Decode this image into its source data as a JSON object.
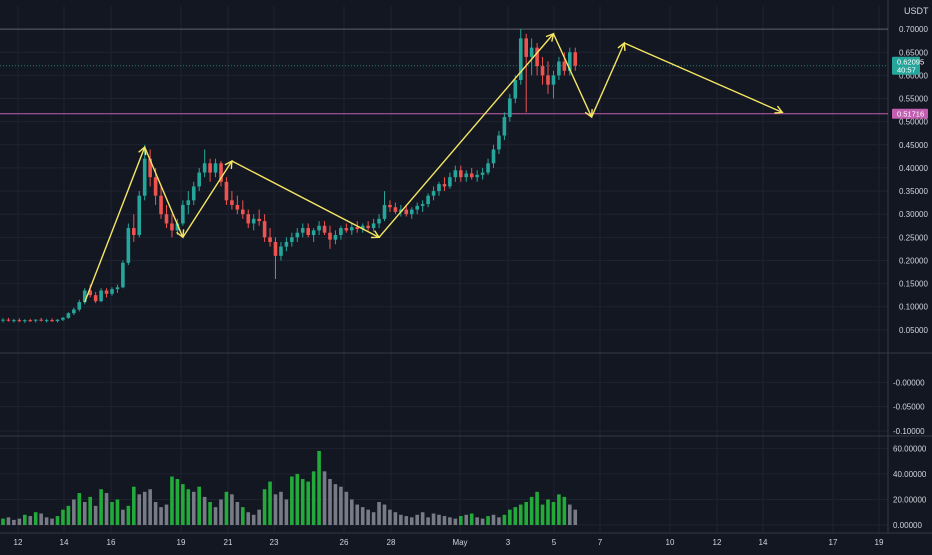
{
  "colors": {
    "background": "#131722",
    "grid": "#1f2330",
    "pane_separator": "#363a45",
    "axis_text": "#d1d4dc",
    "up": "#26a69a",
    "down": "#ef5350",
    "volume_up": "#22ab3a",
    "volume_down": "#787b86",
    "annotation": "#f5e663",
    "support_line": "#c25fb0",
    "resistance_line": "#5d606b",
    "price_badge": "#26a69a",
    "level_badge": "#c25fb0"
  },
  "chart_data": {
    "type": "candlestick",
    "currency_label": "USDT",
    "x_tick_labels": [
      "12",
      "14",
      "16",
      "19",
      "21",
      "23",
      "26",
      "28",
      "May",
      "3",
      "5",
      "7",
      "10",
      "12",
      "14",
      "17",
      "19"
    ],
    "price_axis": {
      "ylim": [
        0.0,
        0.75
      ],
      "ticks": [
        "0.70000",
        "0.65000",
        "0.60000",
        "0.55000",
        "0.50000",
        "0.45000",
        "0.40000",
        "0.35000",
        "0.30000",
        "0.25000",
        "0.20000",
        "0.15000",
        "0.10000",
        "0.05000"
      ]
    },
    "indicator_axis": {
      "ylim": [
        -0.1,
        0.05
      ],
      "ticks": [
        "-0.00000",
        "-0.05000",
        "-0.10000"
      ]
    },
    "volume_axis": {
      "ylim": [
        0,
        65
      ],
      "ticks": [
        "60.00000",
        "40.00000",
        "20.00000",
        "0.00000"
      ]
    },
    "current_price": {
      "value": "0.62095",
      "countdown": "40:57"
    },
    "support_level": {
      "value": "0.51716"
    },
    "resistance_level": 0.7,
    "candles": [
      [
        0.07,
        0.075,
        0.066,
        0.072
      ],
      [
        0.072,
        0.076,
        0.068,
        0.07
      ],
      [
        0.07,
        0.074,
        0.066,
        0.071
      ],
      [
        0.071,
        0.075,
        0.067,
        0.069
      ],
      [
        0.069,
        0.073,
        0.065,
        0.071
      ],
      [
        0.071,
        0.074,
        0.067,
        0.07
      ],
      [
        0.07,
        0.073,
        0.066,
        0.072
      ],
      [
        0.072,
        0.076,
        0.068,
        0.07
      ],
      [
        0.07,
        0.074,
        0.066,
        0.071
      ],
      [
        0.071,
        0.075,
        0.067,
        0.069
      ],
      [
        0.069,
        0.073,
        0.066,
        0.072
      ],
      [
        0.072,
        0.078,
        0.069,
        0.076
      ],
      [
        0.076,
        0.088,
        0.074,
        0.086
      ],
      [
        0.086,
        0.098,
        0.082,
        0.094
      ],
      [
        0.094,
        0.115,
        0.09,
        0.11
      ],
      [
        0.11,
        0.14,
        0.105,
        0.135
      ],
      [
        0.135,
        0.148,
        0.12,
        0.125
      ],
      [
        0.125,
        0.132,
        0.108,
        0.112
      ],
      [
        0.112,
        0.14,
        0.11,
        0.135
      ],
      [
        0.135,
        0.14,
        0.12,
        0.128
      ],
      [
        0.128,
        0.142,
        0.124,
        0.138
      ],
      [
        0.138,
        0.148,
        0.13,
        0.142
      ],
      [
        0.142,
        0.2,
        0.14,
        0.195
      ],
      [
        0.195,
        0.28,
        0.19,
        0.27
      ],
      [
        0.27,
        0.3,
        0.24,
        0.255
      ],
      [
        0.255,
        0.35,
        0.25,
        0.34
      ],
      [
        0.34,
        0.45,
        0.33,
        0.42
      ],
      [
        0.42,
        0.44,
        0.36,
        0.38
      ],
      [
        0.38,
        0.4,
        0.32,
        0.34
      ],
      [
        0.34,
        0.36,
        0.29,
        0.3
      ],
      [
        0.3,
        0.32,
        0.27,
        0.28
      ],
      [
        0.28,
        0.3,
        0.25,
        0.265
      ],
      [
        0.265,
        0.29,
        0.255,
        0.28
      ],
      [
        0.28,
        0.33,
        0.275,
        0.32
      ],
      [
        0.32,
        0.35,
        0.3,
        0.33
      ],
      [
        0.33,
        0.37,
        0.32,
        0.36
      ],
      [
        0.36,
        0.4,
        0.35,
        0.39
      ],
      [
        0.39,
        0.44,
        0.38,
        0.41
      ],
      [
        0.41,
        0.42,
        0.37,
        0.39
      ],
      [
        0.39,
        0.42,
        0.38,
        0.41
      ],
      [
        0.41,
        0.415,
        0.36,
        0.37
      ],
      [
        0.37,
        0.38,
        0.32,
        0.33
      ],
      [
        0.33,
        0.35,
        0.31,
        0.32
      ],
      [
        0.32,
        0.34,
        0.3,
        0.31
      ],
      [
        0.31,
        0.33,
        0.29,
        0.3
      ],
      [
        0.3,
        0.31,
        0.27,
        0.28
      ],
      [
        0.28,
        0.3,
        0.265,
        0.29
      ],
      [
        0.29,
        0.31,
        0.275,
        0.285
      ],
      [
        0.285,
        0.3,
        0.24,
        0.25
      ],
      [
        0.25,
        0.27,
        0.23,
        0.24
      ],
      [
        0.24,
        0.25,
        0.16,
        0.21
      ],
      [
        0.21,
        0.24,
        0.2,
        0.23
      ],
      [
        0.23,
        0.25,
        0.22,
        0.24
      ],
      [
        0.24,
        0.26,
        0.23,
        0.25
      ],
      [
        0.25,
        0.27,
        0.24,
        0.26
      ],
      [
        0.26,
        0.28,
        0.25,
        0.27
      ],
      [
        0.27,
        0.28,
        0.25,
        0.255
      ],
      [
        0.255,
        0.27,
        0.24,
        0.265
      ],
      [
        0.265,
        0.285,
        0.255,
        0.275
      ],
      [
        0.275,
        0.285,
        0.255,
        0.26
      ],
      [
        0.26,
        0.275,
        0.225,
        0.245
      ],
      [
        0.245,
        0.265,
        0.235,
        0.255
      ],
      [
        0.255,
        0.275,
        0.245,
        0.27
      ],
      [
        0.27,
        0.28,
        0.26,
        0.265
      ],
      [
        0.265,
        0.28,
        0.255,
        0.272
      ],
      [
        0.272,
        0.285,
        0.26,
        0.268
      ],
      [
        0.268,
        0.28,
        0.26,
        0.275
      ],
      [
        0.275,
        0.285,
        0.265,
        0.27
      ],
      [
        0.27,
        0.29,
        0.262,
        0.28
      ],
      [
        0.28,
        0.3,
        0.27,
        0.29
      ],
      [
        0.29,
        0.35,
        0.285,
        0.32
      ],
      [
        0.32,
        0.33,
        0.305,
        0.315
      ],
      [
        0.315,
        0.325,
        0.3,
        0.305
      ],
      [
        0.305,
        0.32,
        0.295,
        0.31
      ],
      [
        0.31,
        0.32,
        0.295,
        0.3
      ],
      [
        0.3,
        0.315,
        0.29,
        0.31
      ],
      [
        0.31,
        0.325,
        0.3,
        0.318
      ],
      [
        0.318,
        0.33,
        0.305,
        0.322
      ],
      [
        0.322,
        0.345,
        0.315,
        0.34
      ],
      [
        0.34,
        0.36,
        0.33,
        0.35
      ],
      [
        0.35,
        0.37,
        0.34,
        0.365
      ],
      [
        0.365,
        0.38,
        0.35,
        0.36
      ],
      [
        0.36,
        0.39,
        0.355,
        0.38
      ],
      [
        0.38,
        0.405,
        0.37,
        0.395
      ],
      [
        0.395,
        0.405,
        0.37,
        0.38
      ],
      [
        0.38,
        0.395,
        0.37,
        0.388
      ],
      [
        0.388,
        0.4,
        0.375,
        0.38
      ],
      [
        0.38,
        0.395,
        0.37,
        0.385
      ],
      [
        0.385,
        0.4,
        0.375,
        0.39
      ],
      [
        0.39,
        0.42,
        0.385,
        0.41
      ],
      [
        0.41,
        0.45,
        0.4,
        0.44
      ],
      [
        0.44,
        0.48,
        0.43,
        0.47
      ],
      [
        0.47,
        0.52,
        0.46,
        0.51
      ],
      [
        0.51,
        0.56,
        0.5,
        0.55
      ],
      [
        0.55,
        0.6,
        0.54,
        0.59
      ],
      [
        0.59,
        0.7,
        0.58,
        0.68
      ],
      [
        0.68,
        0.69,
        0.52,
        0.64
      ],
      [
        0.64,
        0.68,
        0.6,
        0.66
      ],
      [
        0.66,
        0.67,
        0.6,
        0.62
      ],
      [
        0.62,
        0.64,
        0.58,
        0.6
      ],
      [
        0.6,
        0.63,
        0.56,
        0.58
      ],
      [
        0.58,
        0.61,
        0.55,
        0.6
      ],
      [
        0.6,
        0.64,
        0.59,
        0.63
      ],
      [
        0.63,
        0.65,
        0.6,
        0.61
      ],
      [
        0.61,
        0.66,
        0.6,
        0.65
      ],
      [
        0.65,
        0.66,
        0.61,
        0.621
      ]
    ],
    "volumes": [
      [
        5,
        1
      ],
      [
        6,
        0
      ],
      [
        4,
        0
      ],
      [
        5,
        0
      ],
      [
        8,
        1
      ],
      [
        7,
        0
      ],
      [
        10,
        1
      ],
      [
        9,
        0
      ],
      [
        6,
        0
      ],
      [
        5,
        0
      ],
      [
        7,
        1
      ],
      [
        12,
        1
      ],
      [
        15,
        1
      ],
      [
        20,
        0
      ],
      [
        25,
        1
      ],
      [
        18,
        0
      ],
      [
        22,
        1
      ],
      [
        15,
        0
      ],
      [
        28,
        1
      ],
      [
        25,
        0
      ],
      [
        18,
        1
      ],
      [
        20,
        1
      ],
      [
        12,
        0
      ],
      [
        15,
        1
      ],
      [
        30,
        1
      ],
      [
        24,
        0
      ],
      [
        26,
        0
      ],
      [
        28,
        0
      ],
      [
        18,
        0
      ],
      [
        14,
        0
      ],
      [
        16,
        0
      ],
      [
        38,
        1
      ],
      [
        36,
        1
      ],
      [
        32,
        1
      ],
      [
        28,
        1
      ],
      [
        26,
        0
      ],
      [
        30,
        1
      ],
      [
        22,
        0
      ],
      [
        18,
        1
      ],
      [
        14,
        0
      ],
      [
        20,
        0
      ],
      [
        26,
        1
      ],
      [
        24,
        0
      ],
      [
        18,
        0
      ],
      [
        14,
        1
      ],
      [
        10,
        0
      ],
      [
        8,
        0
      ],
      [
        12,
        0
      ],
      [
        28,
        1
      ],
      [
        34,
        1
      ],
      [
        24,
        0
      ],
      [
        26,
        0
      ],
      [
        20,
        0
      ],
      [
        38,
        1
      ],
      [
        40,
        1
      ],
      [
        36,
        1
      ],
      [
        34,
        1
      ],
      [
        42,
        1
      ],
      [
        58,
        1
      ],
      [
        42,
        0
      ],
      [
        36,
        0
      ],
      [
        32,
        0
      ],
      [
        30,
        0
      ],
      [
        26,
        0
      ],
      [
        20,
        0
      ],
      [
        16,
        0
      ],
      [
        14,
        0
      ],
      [
        12,
        0
      ],
      [
        10,
        0
      ],
      [
        18,
        0
      ],
      [
        16,
        0
      ],
      [
        12,
        0
      ],
      [
        10,
        0
      ],
      [
        8,
        0
      ],
      [
        7,
        0
      ],
      [
        6,
        0
      ],
      [
        8,
        0
      ],
      [
        10,
        0
      ],
      [
        6,
        0
      ],
      [
        9,
        0
      ],
      [
        8,
        0
      ],
      [
        7,
        0
      ],
      [
        6,
        0
      ],
      [
        5,
        0
      ],
      [
        7,
        1
      ],
      [
        8,
        0
      ],
      [
        9,
        1
      ],
      [
        6,
        0
      ],
      [
        5,
        0
      ],
      [
        7,
        1
      ],
      [
        8,
        0
      ],
      [
        6,
        0
      ],
      [
        8,
        1
      ],
      [
        12,
        1
      ],
      [
        14,
        1
      ],
      [
        16,
        1
      ],
      [
        18,
        1
      ],
      [
        22,
        1
      ],
      [
        26,
        1
      ],
      [
        16,
        1
      ],
      [
        20,
        1
      ],
      [
        18,
        1
      ],
      [
        24,
        1
      ],
      [
        22,
        1
      ],
      [
        16,
        0
      ],
      [
        12,
        0
      ]
    ],
    "annotation_path": [
      [
        15,
        0.11
      ],
      [
        26,
        0.445
      ],
      [
        33,
        0.25
      ],
      [
        42,
        0.415
      ],
      [
        69,
        0.25
      ],
      [
        101,
        0.69
      ],
      [
        108,
        0.51
      ],
      [
        114,
        0.67
      ],
      [
        143,
        0.52
      ]
    ],
    "annotation_lines": [
      [
        [
          42,
          0.415
        ],
        [
          69,
          0.25
        ]
      ],
      [
        [
          114,
          0.67
        ],
        [
          143,
          0.52
        ]
      ]
    ]
  }
}
